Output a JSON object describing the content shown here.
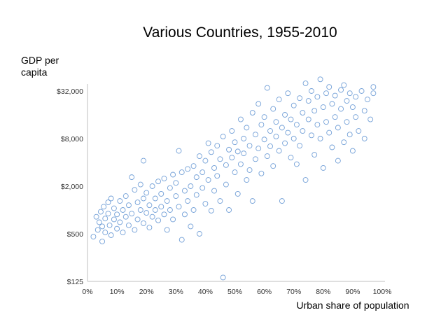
{
  "chart_data": {
    "type": "scatter",
    "title": "Various Countries, 1955-2010",
    "xlabel": "Urban share of population",
    "ylabel_lines": [
      "GDP per",
      "capita"
    ],
    "xlim": [
      0,
      100
    ],
    "ylim": [
      125,
      64000
    ],
    "yscale": "log2",
    "grid": false,
    "x_ticks": [
      0,
      10,
      20,
      30,
      40,
      50,
      60,
      70,
      80,
      90,
      100
    ],
    "x_tick_labels": [
      "0%",
      "10%",
      "20%",
      "30%",
      "40%",
      "50%",
      "60%",
      "70%",
      "80%",
      "90%",
      "100%"
    ],
    "y_ticks": [
      125,
      500,
      2000,
      8000,
      32000
    ],
    "y_tick_labels": [
      "$125",
      "$500",
      "$2,000",
      "$8,000",
      "$32,000"
    ],
    "marker": "hollow-circle",
    "marker_color": "#5b8fd0",
    "series": [
      {
        "name": "country-years",
        "points": [
          {
            "x": 2,
            "y": 460
          },
          {
            "x": 3,
            "y": 820
          },
          {
            "x": 3.5,
            "y": 560
          },
          {
            "x": 4,
            "y": 700
          },
          {
            "x": 4.5,
            "y": 950
          },
          {
            "x": 5,
            "y": 620
          },
          {
            "x": 5,
            "y": 400
          },
          {
            "x": 5.5,
            "y": 1100
          },
          {
            "x": 6,
            "y": 780
          },
          {
            "x": 6,
            "y": 520
          },
          {
            "x": 7,
            "y": 900
          },
          {
            "x": 7,
            "y": 1250
          },
          {
            "x": 7.5,
            "y": 640
          },
          {
            "x": 8,
            "y": 1400
          },
          {
            "x": 8,
            "y": 480
          },
          {
            "x": 9,
            "y": 760
          },
          {
            "x": 9,
            "y": 1050
          },
          {
            "x": 10,
            "y": 580
          },
          {
            "x": 10,
            "y": 880
          },
          {
            "x": 11,
            "y": 1300
          },
          {
            "x": 11,
            "y": 700
          },
          {
            "x": 12,
            "y": 1000
          },
          {
            "x": 12,
            "y": 520
          },
          {
            "x": 13,
            "y": 1500
          },
          {
            "x": 13,
            "y": 820
          },
          {
            "x": 14,
            "y": 640
          },
          {
            "x": 14,
            "y": 1150
          },
          {
            "x": 15,
            "y": 2600
          },
          {
            "x": 15,
            "y": 900
          },
          {
            "x": 16,
            "y": 1800
          },
          {
            "x": 16,
            "y": 560
          },
          {
            "x": 17,
            "y": 1250
          },
          {
            "x": 17,
            "y": 760
          },
          {
            "x": 18,
            "y": 1000
          },
          {
            "x": 18,
            "y": 2100
          },
          {
            "x": 19,
            "y": 680
          },
          {
            "x": 19,
            "y": 1400
          },
          {
            "x": 19,
            "y": 4200
          },
          {
            "x": 20,
            "y": 920
          },
          {
            "x": 20,
            "y": 1650
          },
          {
            "x": 21,
            "y": 1150
          },
          {
            "x": 21,
            "y": 600
          },
          {
            "x": 22,
            "y": 2000
          },
          {
            "x": 22,
            "y": 820
          },
          {
            "x": 23,
            "y": 1400
          },
          {
            "x": 23,
            "y": 1000
          },
          {
            "x": 24,
            "y": 2300
          },
          {
            "x": 24,
            "y": 740
          },
          {
            "x": 25,
            "y": 1600
          },
          {
            "x": 25,
            "y": 1100
          },
          {
            "x": 26,
            "y": 880
          },
          {
            "x": 26,
            "y": 2500
          },
          {
            "x": 27,
            "y": 1300
          },
          {
            "x": 27,
            "y": 560
          },
          {
            "x": 28,
            "y": 1900
          },
          {
            "x": 28,
            "y": 1000
          },
          {
            "x": 29,
            "y": 2800
          },
          {
            "x": 29,
            "y": 760
          },
          {
            "x": 30,
            "y": 1500
          },
          {
            "x": 30,
            "y": 2200
          },
          {
            "x": 31,
            "y": 1100
          },
          {
            "x": 31,
            "y": 5600
          },
          {
            "x": 32,
            "y": 3000
          },
          {
            "x": 32,
            "y": 420
          },
          {
            "x": 33,
            "y": 1750
          },
          {
            "x": 33,
            "y": 880
          },
          {
            "x": 34,
            "y": 3300
          },
          {
            "x": 34,
            "y": 1300
          },
          {
            "x": 35,
            "y": 2000
          },
          {
            "x": 35,
            "y": 620
          },
          {
            "x": 36,
            "y": 3600
          },
          {
            "x": 36,
            "y": 1000
          },
          {
            "x": 37,
            "y": 2600
          },
          {
            "x": 37,
            "y": 1550
          },
          {
            "x": 38,
            "y": 4800
          },
          {
            "x": 38,
            "y": 500
          },
          {
            "x": 39,
            "y": 3000
          },
          {
            "x": 39,
            "y": 1900
          },
          {
            "x": 40,
            "y": 4200
          },
          {
            "x": 40,
            "y": 1200
          },
          {
            "x": 41,
            "y": 2400
          },
          {
            "x": 41,
            "y": 7000
          },
          {
            "x": 42,
            "y": 5400
          },
          {
            "x": 42,
            "y": 980
          },
          {
            "x": 43,
            "y": 3400
          },
          {
            "x": 43,
            "y": 1750
          },
          {
            "x": 44,
            "y": 6500
          },
          {
            "x": 44,
            "y": 2700
          },
          {
            "x": 45,
            "y": 4400
          },
          {
            "x": 45,
            "y": 1300
          },
          {
            "x": 46,
            "y": 8500
          },
          {
            "x": 46,
            "y": 140
          },
          {
            "x": 47,
            "y": 3700
          },
          {
            "x": 47,
            "y": 2100
          },
          {
            "x": 48,
            "y": 5800
          },
          {
            "x": 48,
            "y": 1000
          },
          {
            "x": 49,
            "y": 10000
          },
          {
            "x": 49,
            "y": 4600
          },
          {
            "x": 50,
            "y": 3000
          },
          {
            "x": 50,
            "y": 7200
          },
          {
            "x": 51,
            "y": 5500
          },
          {
            "x": 51,
            "y": 1600
          },
          {
            "x": 52,
            "y": 14000
          },
          {
            "x": 52,
            "y": 3800
          },
          {
            "x": 53,
            "y": 8000
          },
          {
            "x": 53,
            "y": 5200
          },
          {
            "x": 54,
            "y": 2400
          },
          {
            "x": 54,
            "y": 11000
          },
          {
            "x": 55,
            "y": 6500
          },
          {
            "x": 55,
            "y": 3200
          },
          {
            "x": 56,
            "y": 17000
          },
          {
            "x": 56,
            "y": 1300
          },
          {
            "x": 57,
            "y": 9000
          },
          {
            "x": 57,
            "y": 4400
          },
          {
            "x": 58,
            "y": 6000
          },
          {
            "x": 58,
            "y": 22000
          },
          {
            "x": 59,
            "y": 12000
          },
          {
            "x": 59,
            "y": 2900
          },
          {
            "x": 60,
            "y": 7800
          },
          {
            "x": 60,
            "y": 15000
          },
          {
            "x": 61,
            "y": 4800
          },
          {
            "x": 61,
            "y": 35000
          },
          {
            "x": 62,
            "y": 10000
          },
          {
            "x": 62,
            "y": 6400
          },
          {
            "x": 63,
            "y": 19000
          },
          {
            "x": 63,
            "y": 3600
          },
          {
            "x": 64,
            "y": 8500
          },
          {
            "x": 64,
            "y": 13000
          },
          {
            "x": 65,
            "y": 25000
          },
          {
            "x": 65,
            "y": 5600
          },
          {
            "x": 66,
            "y": 11000
          },
          {
            "x": 66,
            "y": 1300
          },
          {
            "x": 67,
            "y": 16000
          },
          {
            "x": 67,
            "y": 7000
          },
          {
            "x": 68,
            "y": 30000
          },
          {
            "x": 68,
            "y": 9500
          },
          {
            "x": 69,
            "y": 4600
          },
          {
            "x": 69,
            "y": 14000
          },
          {
            "x": 70,
            "y": 21000
          },
          {
            "x": 70,
            "y": 8000
          },
          {
            "x": 71,
            "y": 12000
          },
          {
            "x": 71,
            "y": 3800
          },
          {
            "x": 72,
            "y": 26000
          },
          {
            "x": 72,
            "y": 6500
          },
          {
            "x": 73,
            "y": 17000
          },
          {
            "x": 73,
            "y": 10000
          },
          {
            "x": 74,
            "y": 40000
          },
          {
            "x": 74,
            "y": 2400
          },
          {
            "x": 75,
            "y": 14000
          },
          {
            "x": 75,
            "y": 24000
          },
          {
            "x": 76,
            "y": 8800
          },
          {
            "x": 76,
            "y": 32000
          },
          {
            "x": 77,
            "y": 18000
          },
          {
            "x": 77,
            "y": 5000
          },
          {
            "x": 78,
            "y": 12000
          },
          {
            "x": 78,
            "y": 27000
          },
          {
            "x": 79,
            "y": 45000
          },
          {
            "x": 79,
            "y": 8000
          },
          {
            "x": 80,
            "y": 20000
          },
          {
            "x": 80,
            "y": 3400
          },
          {
            "x": 81,
            "y": 30000
          },
          {
            "x": 81,
            "y": 13000
          },
          {
            "x": 82,
            "y": 9500
          },
          {
            "x": 82,
            "y": 36000
          },
          {
            "x": 83,
            "y": 22000
          },
          {
            "x": 83,
            "y": 6200
          },
          {
            "x": 84,
            "y": 15000
          },
          {
            "x": 84,
            "y": 28000
          },
          {
            "x": 85,
            "y": 11000
          },
          {
            "x": 85,
            "y": 4200
          },
          {
            "x": 86,
            "y": 33000
          },
          {
            "x": 86,
            "y": 19000
          },
          {
            "x": 87,
            "y": 7200
          },
          {
            "x": 87,
            "y": 38000
          },
          {
            "x": 88,
            "y": 24000
          },
          {
            "x": 88,
            "y": 13000
          },
          {
            "x": 89,
            "y": 9000
          },
          {
            "x": 89,
            "y": 30000
          },
          {
            "x": 90,
            "y": 20000
          },
          {
            "x": 90,
            "y": 5600
          },
          {
            "x": 91,
            "y": 27000
          },
          {
            "x": 91,
            "y": 15000
          },
          {
            "x": 92,
            "y": 10000
          },
          {
            "x": 93,
            "y": 32000
          },
          {
            "x": 94,
            "y": 18000
          },
          {
            "x": 94,
            "y": 8000
          },
          {
            "x": 95,
            "y": 25000
          },
          {
            "x": 96,
            "y": 14000
          },
          {
            "x": 97,
            "y": 36000
          },
          {
            "x": 97,
            "y": 30000
          }
        ]
      }
    ]
  }
}
